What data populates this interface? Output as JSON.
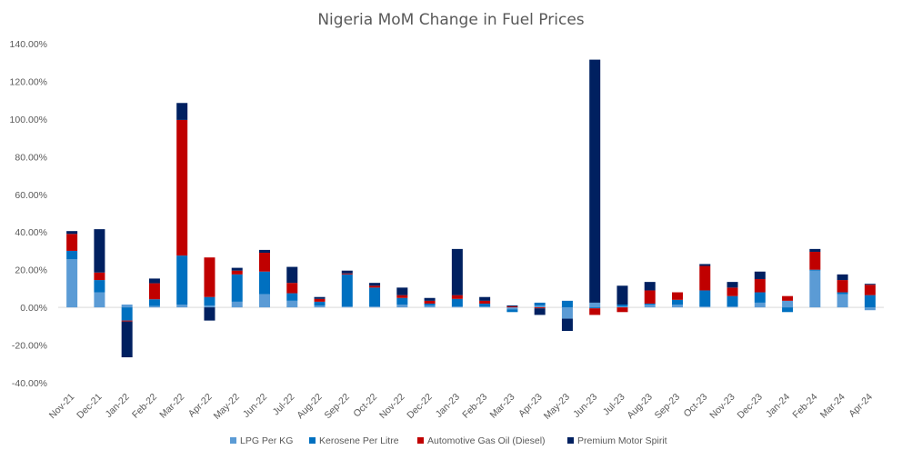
{
  "chart_data": {
    "type": "bar",
    "stacked": true,
    "title": "Nigeria MoM Change in Fuel Prices",
    "xlabel": "",
    "ylabel": "",
    "ylim": [
      -40,
      140
    ],
    "y_ticks": [
      140,
      120,
      100,
      80,
      60,
      40,
      20,
      0,
      -20,
      -40
    ],
    "y_tick_labels": [
      "140.00%",
      "120.00%",
      "100.00%",
      "80.00%",
      "60.00%",
      "40.00%",
      "20.00%",
      "0.00%",
      "-20.00%",
      "-40.00%"
    ],
    "grid": false,
    "legend_position": "bottom",
    "categories": [
      "Nov-21",
      "Dec-21",
      "Jan-22",
      "Feb-22",
      "Mar-22",
      "Apr-22",
      "May-22",
      "Jun-22",
      "Jul-22",
      "Aug-22",
      "Sep-22",
      "Oct-22",
      "Nov-22",
      "Dec-22",
      "Jan-23",
      "Feb-23",
      "Mar-23",
      "Apr-23",
      "May-23",
      "Jun-23",
      "Jul-23",
      "Aug-23",
      "Sep-23",
      "Oct-23",
      "Nov-23",
      "Dec-23",
      "Jan-24",
      "Feb-24",
      "Mar-24",
      "Apr-24"
    ],
    "series": [
      {
        "name": "LPG Per KG",
        "color": "#5B9BD5",
        "values": [
          25.5,
          8.0,
          1.5,
          0.8,
          1.5,
          1.0,
          3.0,
          7.0,
          3.5,
          1.0,
          0.5,
          0.5,
          1.5,
          1.0,
          0.5,
          0.5,
          -1.0,
          1.0,
          -6.0,
          2.5,
          0.5,
          1.5,
          1.5,
          0.5,
          0.5,
          2.5,
          3.5,
          19.5,
          7.0,
          -1.5
        ]
      },
      {
        "name": "Kerosene Per Litre",
        "color": "#0070C0",
        "values": [
          4.5,
          6.5,
          -7.0,
          3.5,
          26.0,
          4.5,
          14.5,
          12.0,
          4.0,
          2.0,
          17.0,
          10.0,
          3.5,
          1.0,
          4.0,
          1.5,
          -1.5,
          1.5,
          3.5,
          -0.5,
          1.0,
          0.5,
          2.5,
          8.5,
          5.5,
          5.5,
          -2.5,
          0.5,
          1.0,
          6.5
        ]
      },
      {
        "name": "Automotive Gas Oil (Diesel)",
        "color": "#C00000",
        "values": [
          9.0,
          4.0,
          -0.5,
          8.5,
          72.0,
          21.0,
          2.0,
          10.0,
          5.5,
          1.5,
          0.5,
          1.0,
          1.5,
          1.5,
          2.0,
          1.5,
          0.5,
          -0.5,
          0.0,
          -3.5,
          -2.5,
          7.0,
          4.0,
          13.0,
          4.5,
          7.0,
          2.5,
          9.5,
          6.5,
          5.5
        ]
      },
      {
        "name": "Premium Motor Spirit",
        "color": "#002060",
        "values": [
          1.5,
          23.0,
          -19.0,
          2.5,
          9.0,
          -7.0,
          1.5,
          1.5,
          8.5,
          1.0,
          1.5,
          1.5,
          4.0,
          1.5,
          24.5,
          2.0,
          0.5,
          -3.5,
          -6.5,
          129.0,
          10.0,
          4.5,
          0.0,
          1.0,
          3.0,
          4.0,
          0.0,
          1.5,
          3.0,
          0.5
        ]
      }
    ]
  }
}
